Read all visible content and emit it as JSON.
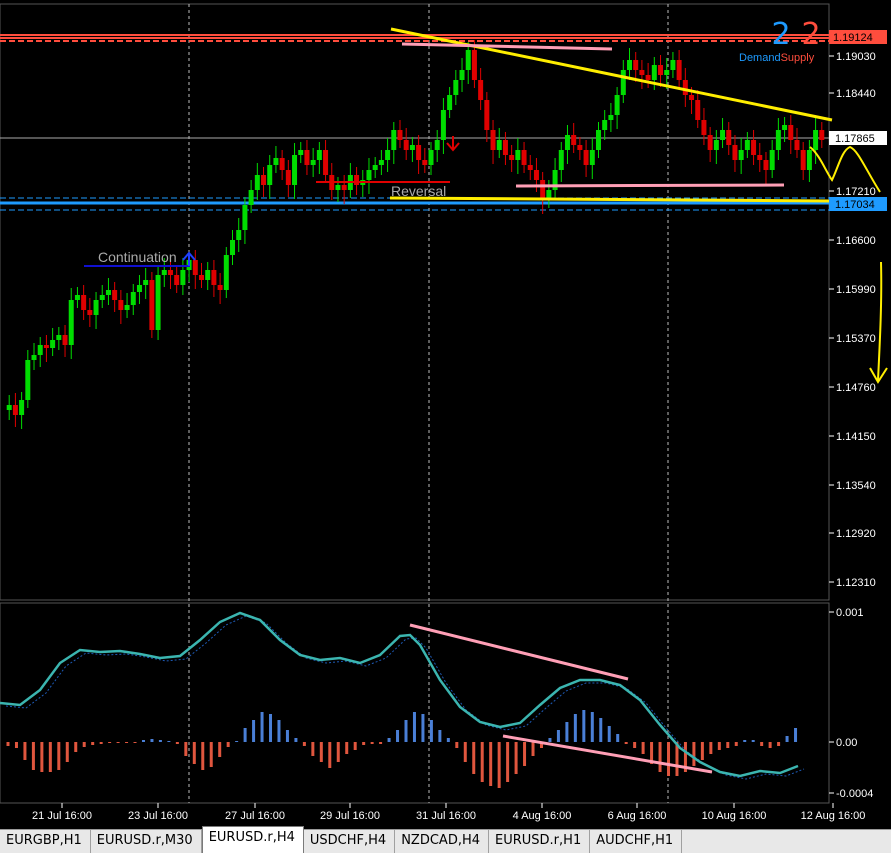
{
  "chart": {
    "symbol_tab_active": "EURUSD.r,H4",
    "price_ticks": [
      "1.19124",
      "1.19030",
      "1.18440",
      "1.17865",
      "1.17210",
      "1.17034",
      "1.16600",
      "1.15990",
      "1.15370",
      "1.14760",
      "1.14150",
      "1.13540",
      "1.12920",
      "1.12310"
    ],
    "price_labels": {
      "supply_level": "1.19124",
      "current_price": "1.17865",
      "demand_level": "1.17034"
    },
    "time_labels": [
      "21 Jul 16:00",
      "23 Jul 16:00",
      "27 Jul 16:00",
      "29 Jul 16:00",
      "31 Jul 16:00",
      "4 Aug 16:00",
      "6 Aug 16:00",
      "10 Aug 16:00",
      "12 Aug 16:00"
    ],
    "indicator_ticks": [
      "0.001",
      "0.00",
      "-0.0004"
    ],
    "annotations": {
      "continuation": "Continuation",
      "reversal": "Reversal"
    },
    "zone_counts": {
      "demand_count": "2",
      "supply_count": "2",
      "demand_label": "Demand",
      "supply_label": "Supply"
    },
    "colors": {
      "bull": "#00dd00",
      "bear": "#e00000",
      "supply": "#ff4d3d",
      "demand": "#1e9bff",
      "trendline": "#ffee00",
      "divergence": "#ff9fb6",
      "macd_line": "#3bb5b0",
      "hist_up": "#4a7fd6",
      "hist_down": "#e0563e"
    }
  },
  "tabs": [
    "EURGBP,H1",
    "EURUSD.r,M30",
    "EURUSD.r,H4",
    "USDCHF,H4",
    "NZDCAD,H4",
    "EURUSD.r,H1",
    "AUDCHF,H1"
  ]
}
